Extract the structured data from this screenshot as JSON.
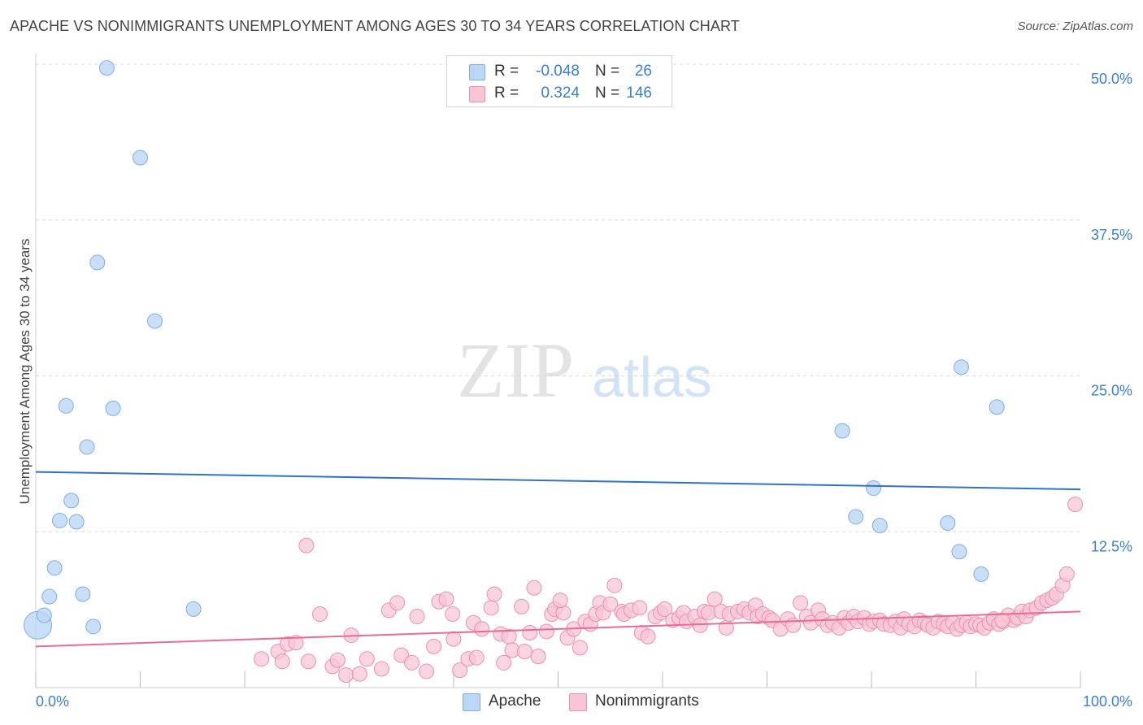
{
  "title": "APACHE VS NONIMMIGRANTS UNEMPLOYMENT AMONG AGES 30 TO 34 YEARS CORRELATION CHART",
  "source": "Source: ZipAtlas.com",
  "watermark": {
    "zip": "ZIP",
    "atlas": "atlas"
  },
  "legend": {
    "apache": {
      "r_label": "R =",
      "r_value": "-0.048",
      "n_label": "N =",
      "n_value": "26"
    },
    "nonimmigrants": {
      "r_label": "R =",
      "r_value": "0.324",
      "n_label": "N =",
      "n_value": "146"
    }
  },
  "bottom_legend": {
    "apache": "Apache",
    "nonimmigrants": "Nonimmigrants"
  },
  "colors": {
    "apache_fill": "#bcd6f5",
    "apache_stroke": "#7eaee6",
    "apache_line": "#2e72cc",
    "nonimm_fill": "#f8c5d6",
    "nonimm_stroke": "#ec8fb0",
    "nonimm_line": "#e96b95",
    "tick_label": "#3a7fd1",
    "grid": "#d9d9d9"
  },
  "chart_data": {
    "type": "scatter",
    "title": "APACHE VS NONIMMIGRANTS UNEMPLOYMENT AMONG AGES 30 TO 34 YEARS CORRELATION CHART",
    "xlabel": "",
    "ylabel": "Unemployment Among Ages 30 to 34 years",
    "xlim": [
      0,
      100
    ],
    "ylim": [
      0,
      50
    ],
    "x_tick_labels": [
      "0.0%",
      "100.0%"
    ],
    "y_ticks": [
      12.5,
      25.0,
      37.5,
      50.0
    ],
    "y_tick_labels": [
      "12.5%",
      "25.0%",
      "37.5%",
      "50.0%"
    ],
    "grid": true,
    "series": [
      {
        "name": "Apache",
        "R": -0.048,
        "N": 26,
        "trend": {
          "x": [
            0,
            100
          ],
          "y": [
            17.3,
            15.9
          ]
        },
        "points": [
          {
            "x": 0.2,
            "y": 5.0,
            "big": true
          },
          {
            "x": 0.8,
            "y": 5.8
          },
          {
            "x": 1.3,
            "y": 7.3
          },
          {
            "x": 1.8,
            "y": 9.6
          },
          {
            "x": 2.3,
            "y": 13.4
          },
          {
            "x": 2.9,
            "y": 22.6
          },
          {
            "x": 3.4,
            "y": 15.0
          },
          {
            "x": 3.9,
            "y": 13.3
          },
          {
            "x": 4.5,
            "y": 7.5
          },
          {
            "x": 4.9,
            "y": 19.3
          },
          {
            "x": 5.5,
            "y": 4.9
          },
          {
            "x": 5.9,
            "y": 34.1
          },
          {
            "x": 6.8,
            "y": 49.7
          },
          {
            "x": 7.4,
            "y": 22.4
          },
          {
            "x": 10.0,
            "y": 42.5
          },
          {
            "x": 11.4,
            "y": 29.4
          },
          {
            "x": 15.1,
            "y": 6.3
          },
          {
            "x": 77.2,
            "y": 20.6
          },
          {
            "x": 78.5,
            "y": 13.7
          },
          {
            "x": 80.2,
            "y": 16.0
          },
          {
            "x": 80.8,
            "y": 13.0
          },
          {
            "x": 87.3,
            "y": 13.2
          },
          {
            "x": 88.6,
            "y": 25.7
          },
          {
            "x": 88.4,
            "y": 10.9
          },
          {
            "x": 90.5,
            "y": 9.1
          },
          {
            "x": 92.0,
            "y": 22.5
          }
        ]
      },
      {
        "name": "Nonimmigrants",
        "R": 0.324,
        "N": 146,
        "trend": {
          "x": [
            0,
            100
          ],
          "y": [
            3.3,
            6.1
          ]
        },
        "points": [
          {
            "x": 21.6,
            "y": 2.3
          },
          {
            "x": 23.2,
            "y": 2.9
          },
          {
            "x": 23.6,
            "y": 2.1
          },
          {
            "x": 24.1,
            "y": 3.5
          },
          {
            "x": 24.9,
            "y": 3.6
          },
          {
            "x": 26.1,
            "y": 2.1
          },
          {
            "x": 25.9,
            "y": 11.4
          },
          {
            "x": 27.2,
            "y": 5.9
          },
          {
            "x": 28.4,
            "y": 1.7
          },
          {
            "x": 28.9,
            "y": 2.2
          },
          {
            "x": 29.7,
            "y": 1.0
          },
          {
            "x": 30.2,
            "y": 4.2
          },
          {
            "x": 31.0,
            "y": 1.1
          },
          {
            "x": 31.7,
            "y": 2.3
          },
          {
            "x": 33.1,
            "y": 1.5
          },
          {
            "x": 33.8,
            "y": 6.2
          },
          {
            "x": 35.0,
            "y": 2.6
          },
          {
            "x": 34.6,
            "y": 6.8
          },
          {
            "x": 36.0,
            "y": 2.0
          },
          {
            "x": 36.5,
            "y": 5.7
          },
          {
            "x": 37.4,
            "y": 1.3
          },
          {
            "x": 38.6,
            "y": 6.9
          },
          {
            "x": 38.1,
            "y": 3.3
          },
          {
            "x": 39.3,
            "y": 7.1
          },
          {
            "x": 40.0,
            "y": 3.9
          },
          {
            "x": 39.9,
            "y": 5.9
          },
          {
            "x": 40.6,
            "y": 1.4
          },
          {
            "x": 41.4,
            "y": 2.3
          },
          {
            "x": 41.9,
            "y": 5.2
          },
          {
            "x": 42.7,
            "y": 4.7
          },
          {
            "x": 42.2,
            "y": 2.4
          },
          {
            "x": 43.6,
            "y": 6.4
          },
          {
            "x": 43.9,
            "y": 7.5
          },
          {
            "x": 44.5,
            "y": 4.3
          },
          {
            "x": 44.8,
            "y": 2.0
          },
          {
            "x": 45.3,
            "y": 4.1
          },
          {
            "x": 45.6,
            "y": 3.0
          },
          {
            "x": 46.5,
            "y": 6.5
          },
          {
            "x": 46.8,
            "y": 2.9
          },
          {
            "x": 47.3,
            "y": 4.4
          },
          {
            "x": 47.7,
            "y": 8.0
          },
          {
            "x": 48.1,
            "y": 2.5
          },
          {
            "x": 48.9,
            "y": 4.5
          },
          {
            "x": 49.4,
            "y": 5.9
          },
          {
            "x": 49.7,
            "y": 6.3
          },
          {
            "x": 50.5,
            "y": 6.0
          },
          {
            "x": 50.2,
            "y": 7.0
          },
          {
            "x": 50.9,
            "y": 4.0
          },
          {
            "x": 51.5,
            "y": 4.7
          },
          {
            "x": 52.1,
            "y": 3.2
          },
          {
            "x": 52.6,
            "y": 5.3
          },
          {
            "x": 53.1,
            "y": 5.1
          },
          {
            "x": 53.6,
            "y": 5.9
          },
          {
            "x": 54.0,
            "y": 6.8
          },
          {
            "x": 54.3,
            "y": 6.0
          },
          {
            "x": 55.0,
            "y": 6.7
          },
          {
            "x": 55.4,
            "y": 8.2
          },
          {
            "x": 56.1,
            "y": 6.1
          },
          {
            "x": 56.3,
            "y": 5.9
          },
          {
            "x": 57.0,
            "y": 6.2
          },
          {
            "x": 57.8,
            "y": 6.4
          },
          {
            "x": 58.0,
            "y": 4.4
          },
          {
            "x": 58.6,
            "y": 4.1
          },
          {
            "x": 59.3,
            "y": 5.7
          },
          {
            "x": 59.8,
            "y": 6.0
          },
          {
            "x": 60.2,
            "y": 6.3
          },
          {
            "x": 61.0,
            "y": 5.4
          },
          {
            "x": 61.6,
            "y": 5.6
          },
          {
            "x": 62.0,
            "y": 6.0
          },
          {
            "x": 62.3,
            "y": 5.3
          },
          {
            "x": 63.1,
            "y": 5.7
          },
          {
            "x": 64.0,
            "y": 6.1
          },
          {
            "x": 64.4,
            "y": 6.0
          },
          {
            "x": 65.0,
            "y": 7.1
          },
          {
            "x": 65.6,
            "y": 6.1
          },
          {
            "x": 66.1,
            "y": 4.8
          },
          {
            "x": 66.4,
            "y": 5.9
          },
          {
            "x": 67.2,
            "y": 6.1
          },
          {
            "x": 67.8,
            "y": 6.3
          },
          {
            "x": 68.3,
            "y": 6.0
          },
          {
            "x": 68.9,
            "y": 6.6
          },
          {
            "x": 69.1,
            "y": 5.7
          },
          {
            "x": 69.6,
            "y": 5.9
          },
          {
            "x": 70.2,
            "y": 5.6
          },
          {
            "x": 70.5,
            "y": 5.4
          },
          {
            "x": 71.3,
            "y": 4.7
          },
          {
            "x": 72.0,
            "y": 5.5
          },
          {
            "x": 72.5,
            "y": 5.0
          },
          {
            "x": 73.2,
            "y": 6.8
          },
          {
            "x": 73.8,
            "y": 5.7
          },
          {
            "x": 74.2,
            "y": 5.2
          },
          {
            "x": 74.9,
            "y": 6.2
          },
          {
            "x": 75.3,
            "y": 5.5
          },
          {
            "x": 75.8,
            "y": 5.0
          },
          {
            "x": 76.3,
            "y": 5.2
          },
          {
            "x": 76.9,
            "y": 4.8
          },
          {
            "x": 77.4,
            "y": 5.6
          },
          {
            "x": 77.8,
            "y": 5.2
          },
          {
            "x": 78.3,
            "y": 5.7
          },
          {
            "x": 78.7,
            "y": 5.3
          },
          {
            "x": 79.3,
            "y": 5.6
          },
          {
            "x": 79.8,
            "y": 5.1
          },
          {
            "x": 80.2,
            "y": 5.3
          },
          {
            "x": 80.8,
            "y": 5.4
          },
          {
            "x": 81.2,
            "y": 5.1
          },
          {
            "x": 81.8,
            "y": 5.0
          },
          {
            "x": 82.3,
            "y": 5.3
          },
          {
            "x": 82.8,
            "y": 4.8
          },
          {
            "x": 83.1,
            "y": 5.5
          },
          {
            "x": 83.6,
            "y": 5.1
          },
          {
            "x": 84.1,
            "y": 4.9
          },
          {
            "x": 84.6,
            "y": 5.4
          },
          {
            "x": 85.1,
            "y": 5.2
          },
          {
            "x": 85.4,
            "y": 5.0
          },
          {
            "x": 85.9,
            "y": 4.8
          },
          {
            "x": 86.4,
            "y": 5.3
          },
          {
            "x": 86.9,
            "y": 5.1
          },
          {
            "x": 87.3,
            "y": 4.9
          },
          {
            "x": 87.8,
            "y": 5.2
          },
          {
            "x": 88.2,
            "y": 4.7
          },
          {
            "x": 88.6,
            "y": 5.0
          },
          {
            "x": 89.1,
            "y": 5.2
          },
          {
            "x": 89.5,
            "y": 4.9
          },
          {
            "x": 90.0,
            "y": 5.1
          },
          {
            "x": 90.4,
            "y": 5.0
          },
          {
            "x": 90.8,
            "y": 4.8
          },
          {
            "x": 91.3,
            "y": 5.2
          },
          {
            "x": 91.7,
            "y": 5.5
          },
          {
            "x": 92.2,
            "y": 5.1
          },
          {
            "x": 92.6,
            "y": 5.3
          },
          {
            "x": 93.1,
            "y": 5.8
          },
          {
            "x": 93.6,
            "y": 5.4
          },
          {
            "x": 94.0,
            "y": 5.6
          },
          {
            "x": 94.4,
            "y": 6.1
          },
          {
            "x": 94.8,
            "y": 5.7
          },
          {
            "x": 95.2,
            "y": 6.2
          },
          {
            "x": 95.8,
            "y": 6.4
          },
          {
            "x": 96.3,
            "y": 6.8
          },
          {
            "x": 96.8,
            "y": 7.0
          },
          {
            "x": 97.3,
            "y": 7.2
          },
          {
            "x": 97.7,
            "y": 7.5
          },
          {
            "x": 98.3,
            "y": 8.2
          },
          {
            "x": 98.7,
            "y": 9.1
          },
          {
            "x": 99.5,
            "y": 14.7
          },
          {
            "x": 92.5,
            "y": 5.4
          },
          {
            "x": 63.6,
            "y": 5.0
          }
        ]
      }
    ]
  }
}
